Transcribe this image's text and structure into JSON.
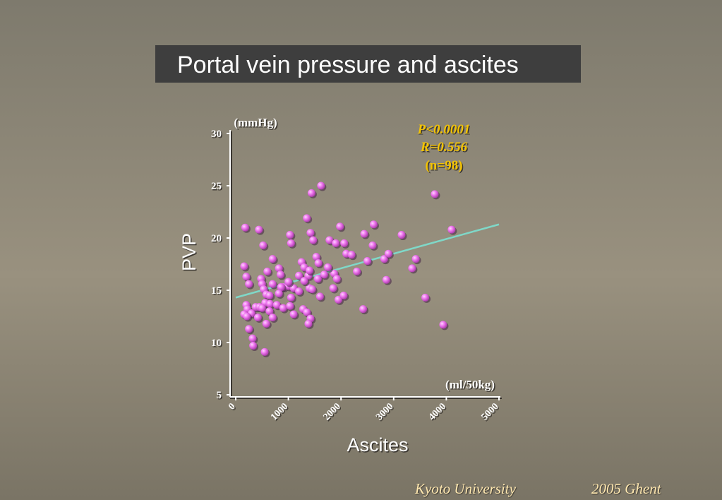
{
  "slide": {
    "title": "Portal vein pressure and ascites",
    "footer_institution": "Kyoto University",
    "footer_event": "2005   Ghent"
  },
  "colors": {
    "point_fill": "#f07af0",
    "regression_line": "#7fd8c8",
    "stats_text": "#f5c400",
    "axis": "#ffffff"
  },
  "chart_data": {
    "type": "scatter",
    "xlabel": "Ascites",
    "ylabel": "PVP",
    "x_unit": "(ml/50kg)",
    "y_unit": "(mmHg)",
    "xlim": [
      0,
      5000
    ],
    "ylim": [
      5,
      30
    ],
    "xticks": [
      "0",
      "1000",
      "2000",
      "3000",
      "4000",
      "5000"
    ],
    "yticks": [
      "5",
      "10",
      "15",
      "20",
      "25",
      "30"
    ],
    "annotations": [
      "P<0.0001",
      "R=0.556",
      "(n=98)"
    ],
    "regression": {
      "x": [
        0,
        5000
      ],
      "y": [
        14.3,
        21.3
      ]
    },
    "points": [
      [
        180,
        21
      ],
      [
        440,
        20.8
      ],
      [
        520,
        19.3
      ],
      [
        1030,
        20.3
      ],
      [
        1050,
        19.5
      ],
      [
        1350,
        21.9
      ],
      [
        1440,
        24.3
      ],
      [
        1620,
        25
      ],
      [
        1420,
        20.5
      ],
      [
        1470,
        19.8
      ],
      [
        1780,
        19.8
      ],
      [
        1900,
        19.5
      ],
      [
        1980,
        21.1
      ],
      [
        2060,
        19.5
      ],
      [
        2440,
        20.4
      ],
      [
        2620,
        21.3
      ],
      [
        2600,
        19.3
      ],
      [
        3150,
        20.3
      ],
      [
        3780,
        24.2
      ],
      [
        4100,
        20.8
      ],
      [
        160,
        17.3
      ],
      [
        200,
        16.3
      ],
      [
        250,
        15.6
      ],
      [
        480,
        16.1
      ],
      [
        500,
        15.6
      ],
      [
        700,
        18
      ],
      [
        820,
        17.1
      ],
      [
        850,
        16.5
      ],
      [
        900,
        15.3
      ],
      [
        1000,
        15.4
      ],
      [
        1100,
        15.2
      ],
      [
        1250,
        17.7
      ],
      [
        1300,
        17.2
      ],
      [
        1380,
        16.4
      ],
      [
        1400,
        16.9
      ],
      [
        1530,
        18.2
      ],
      [
        1570,
        17.6
      ],
      [
        1680,
        16.5
      ],
      [
        1870,
        16.6
      ],
      [
        2100,
        18.5
      ],
      [
        2200,
        18.4
      ],
      [
        2820,
        18
      ],
      [
        2900,
        18.5
      ],
      [
        3350,
        17.1
      ],
      [
        3420,
        18
      ],
      [
        530,
        15.1
      ],
      [
        580,
        14.6
      ],
      [
        640,
        14.5
      ],
      [
        700,
        15.6
      ],
      [
        560,
        13.8
      ],
      [
        650,
        13.7
      ],
      [
        780,
        13.6
      ],
      [
        860,
        15.3
      ],
      [
        1050,
        14.3
      ],
      [
        1200,
        14.9
      ],
      [
        1400,
        15.2
      ],
      [
        1450,
        15.1
      ],
      [
        1600,
        14.4
      ],
      [
        1850,
        15.2
      ],
      [
        1950,
        14.1
      ],
      [
        2050,
        14.5
      ],
      [
        200,
        13.6
      ],
      [
        220,
        13.2
      ],
      [
        300,
        12.8
      ],
      [
        380,
        13.4
      ],
      [
        450,
        13.4
      ],
      [
        500,
        13.3
      ],
      [
        640,
        13
      ],
      [
        700,
        12.4
      ],
      [
        900,
        13.3
      ],
      [
        1030,
        13.5
      ],
      [
        1100,
        12.7
      ],
      [
        1280,
        13.2
      ],
      [
        1350,
        12.9
      ],
      [
        1420,
        12.3
      ],
      [
        1380,
        11.8
      ],
      [
        2420,
        13.2
      ],
      [
        160,
        12.7
      ],
      [
        210,
        12.5
      ],
      [
        420,
        12.4
      ],
      [
        580,
        11.8
      ],
      [
        250,
        11.3
      ],
      [
        320,
        10.4
      ],
      [
        330,
        9.7
      ],
      [
        550,
        9.1
      ],
      [
        2860,
        16
      ],
      [
        3600,
        14.3
      ],
      [
        3940,
        11.7
      ],
      [
        1000,
        15.8
      ],
      [
        1200,
        16.4
      ],
      [
        1750,
        17.2
      ],
      [
        1920,
        16.1
      ],
      [
        2500,
        17.8
      ],
      [
        600,
        16.8
      ],
      [
        820,
        14.7
      ],
      [
        1300,
        15.9
      ],
      [
        1560,
        16.1
      ],
      [
        2300,
        16.8
      ]
    ]
  }
}
